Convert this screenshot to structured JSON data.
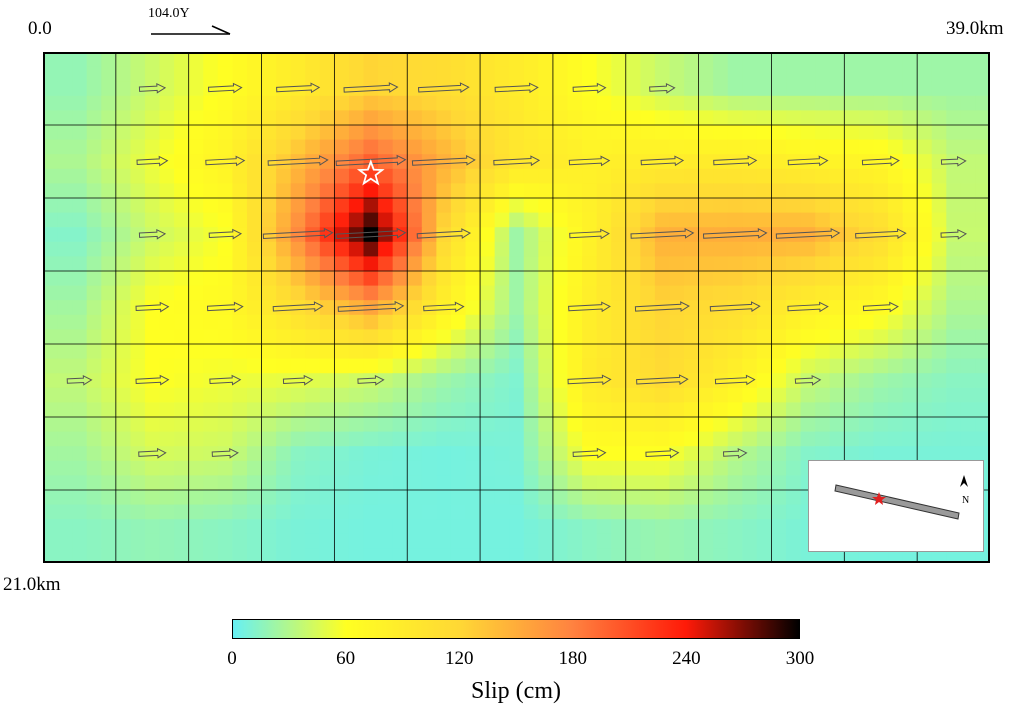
{
  "chart_data": {
    "type": "heatmap",
    "title": "",
    "corner_labels": {
      "top_left": "0.0",
      "top_right": "39.0km",
      "bottom_left": "21.0km"
    },
    "strike_label": "104.0Υ",
    "xlim_km": [
      0,
      39
    ],
    "ylim_km": [
      0,
      21
    ],
    "grid": true,
    "columns": 13,
    "rows": 7,
    "slip_cm": [
      [
        18,
        40,
        62,
        90,
        122,
        112,
        90,
        60,
        38,
        22,
        22,
        22,
        22
      ],
      [
        28,
        54,
        78,
        140,
        200,
        148,
        98,
        82,
        88,
        90,
        80,
        72,
        36
      ],
      [
        12,
        40,
        58,
        175,
        300,
        120,
        22,
        80,
        148,
        150,
        150,
        112,
        38
      ],
      [
        24,
        60,
        68,
        110,
        156,
        82,
        22,
        86,
        122,
        110,
        82,
        66,
        28
      ],
      [
        36,
        60,
        54,
        50,
        40,
        22,
        10,
        90,
        115,
        80,
        38,
        22,
        14
      ],
      [
        24,
        44,
        40,
        14,
        8,
        6,
        8,
        60,
        60,
        32,
        12,
        8,
        8
      ],
      [
        14,
        18,
        14,
        8,
        6,
        6,
        6,
        14,
        20,
        14,
        8,
        6,
        6
      ]
    ],
    "hypocenter": {
      "x_km": 13.5,
      "y_km": 5.0,
      "symbol": "star"
    },
    "colorbar": {
      "label": "Slip (cm)",
      "range": [
        0,
        300
      ],
      "ticks": [
        "0",
        "60",
        "120",
        "180",
        "240",
        "300"
      ],
      "colors": [
        "#66f0f4",
        "#ffff22",
        "#ffd835",
        "#ff8240",
        "#ff1a08",
        "#000000"
      ]
    },
    "inset": {
      "north_label": "N",
      "epicenter_color": "#e02020"
    }
  }
}
